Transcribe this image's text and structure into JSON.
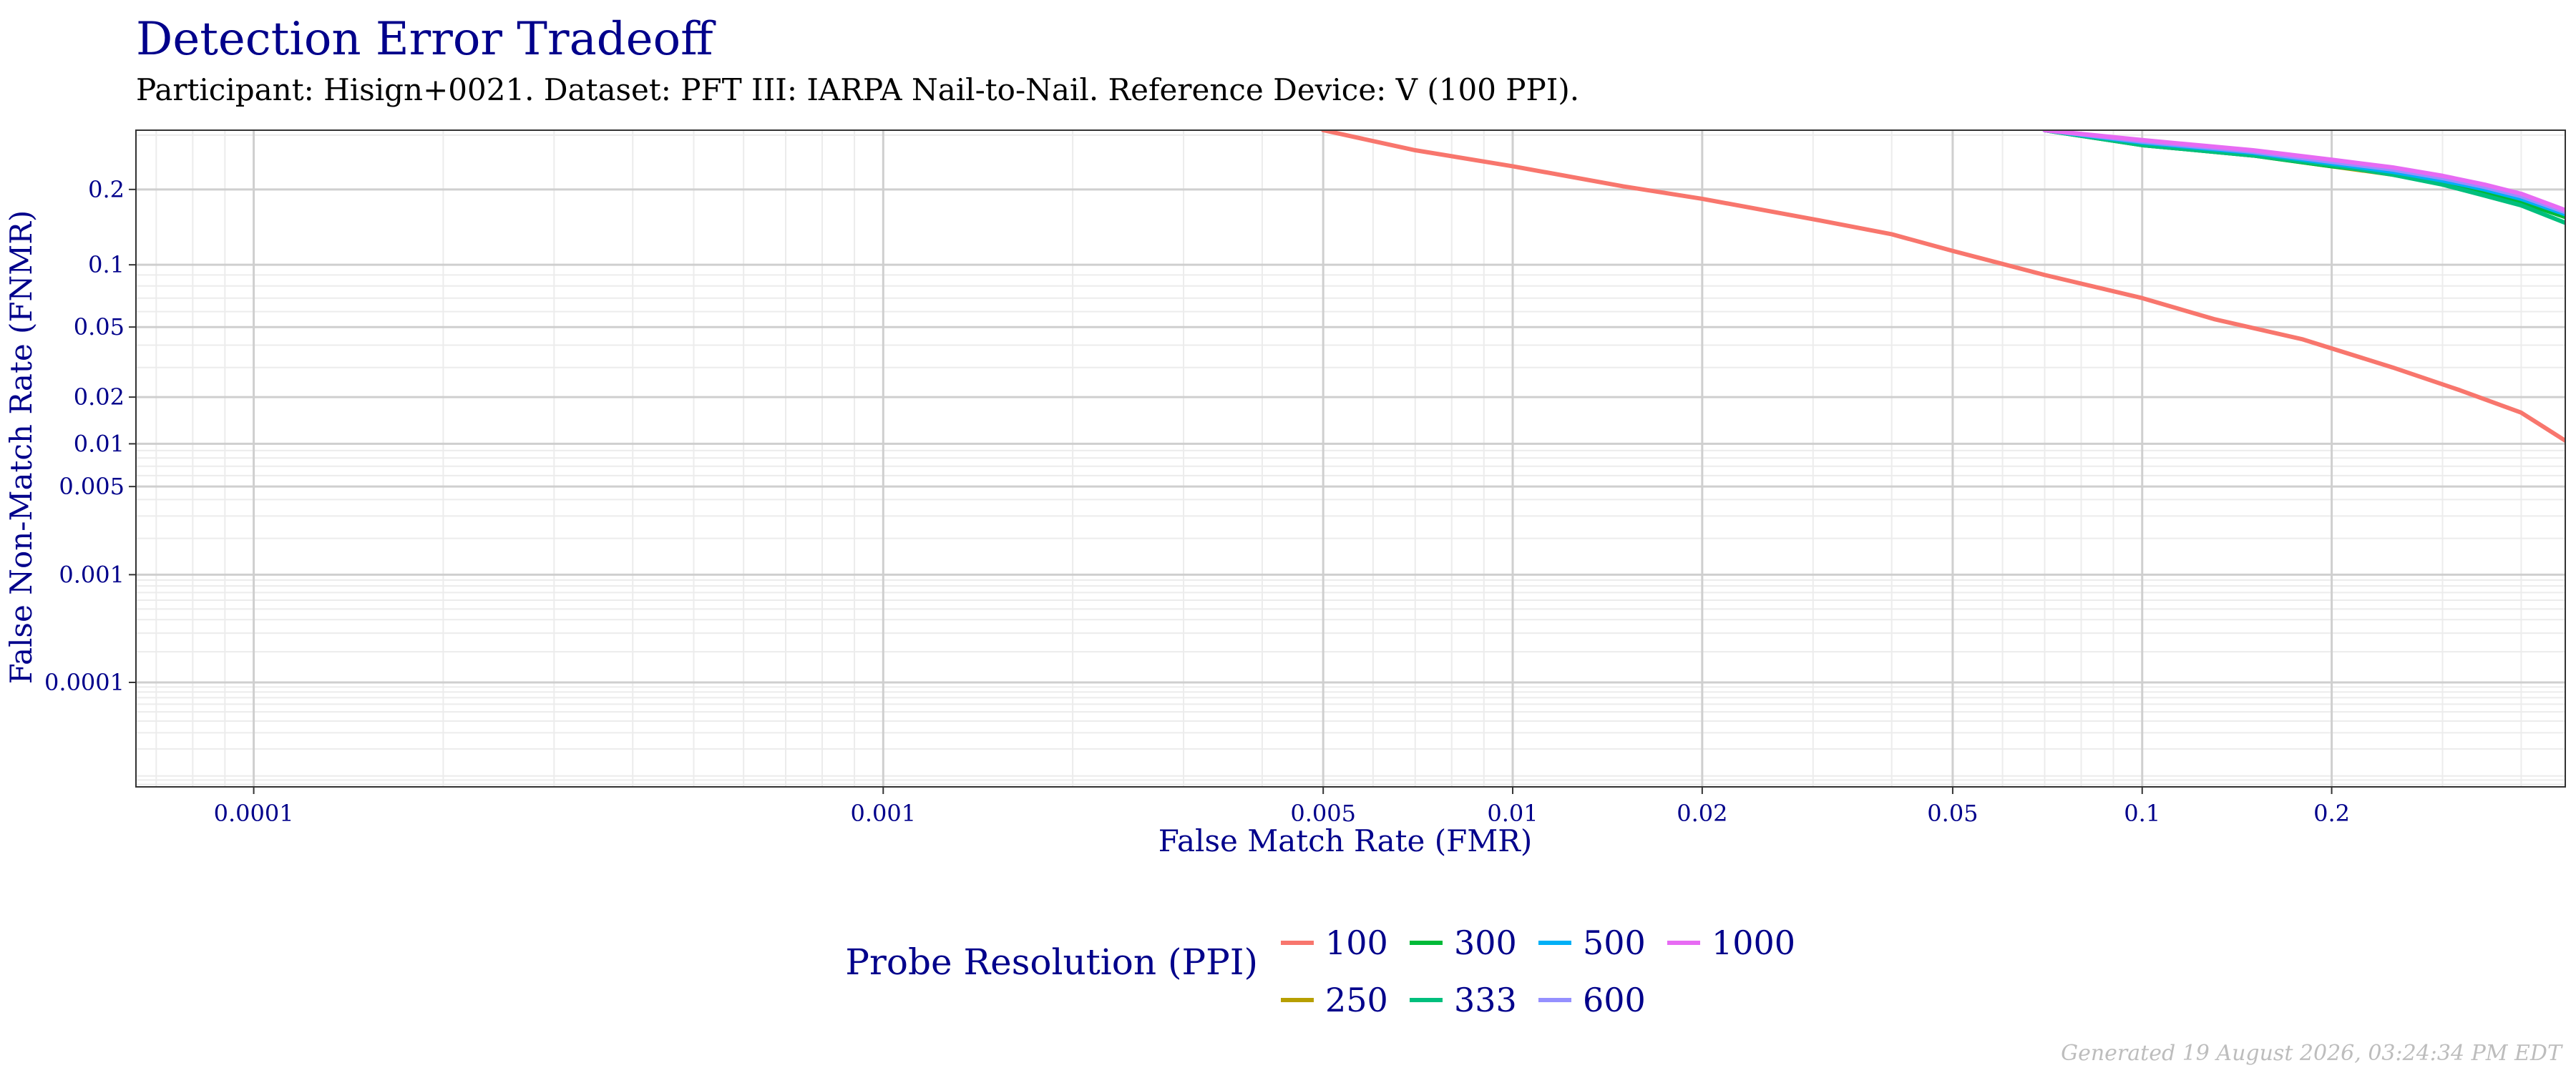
{
  "title": "Detection Error Tradeoff",
  "subtitle": "Participant: Hisign+0021. Dataset: PFT III: IARPA Nail-to-Nail. Reference Device: V (100 PPI).",
  "footer": "Generated 19 August 2026, 03:24:34 PM EDT",
  "colors": {
    "title": "#00008b",
    "axis_text": "#00008b",
    "subtitle": "#000000",
    "footer": "#bdbdbd",
    "grid_major": "#cfcfcf",
    "grid_minor": "#ececec",
    "panel_border": "#333333"
  },
  "chart_data": {
    "type": "line",
    "title": "Detection Error Tradeoff",
    "subtitle": "Participant: Hisign+0021. Dataset: PFT III: IARPA Nail-to-Nail. Reference Device: V (100 PPI).",
    "xlabel": "False Match Rate (FMR)",
    "ylabel": "False Non-Match Rate (FNMR)",
    "x_scale": "log",
    "y_scale": "probit",
    "xlim": [
      6.5e-05,
      0.47
    ],
    "ylim": [
      7.5e-06,
      0.31
    ],
    "x_ticks": [
      {
        "value": 0.0001,
        "label": "0.0001"
      },
      {
        "value": 0.001,
        "label": "0.001"
      },
      {
        "value": 0.005,
        "label": "0.005"
      },
      {
        "value": 0.01,
        "label": "0.01"
      },
      {
        "value": 0.02,
        "label": "0.02"
      },
      {
        "value": 0.05,
        "label": "0.05"
      },
      {
        "value": 0.1,
        "label": "0.1"
      },
      {
        "value": 0.2,
        "label": "0.2"
      }
    ],
    "y_ticks": [
      {
        "value": 0.2,
        "label": "0.2"
      },
      {
        "value": 0.1,
        "label": "0.1"
      },
      {
        "value": 0.05,
        "label": "0.05"
      },
      {
        "value": 0.02,
        "label": "0.02"
      },
      {
        "value": 0.01,
        "label": "0.01"
      },
      {
        "value": 0.005,
        "label": "0.005"
      },
      {
        "value": 0.001,
        "label": "0.001"
      },
      {
        "value": 0.0001,
        "label": "0.0001"
      }
    ],
    "grid": true,
    "legend": {
      "title": "Probe Resolution (PPI)",
      "position": "bottom"
    },
    "series": [
      {
        "name": "100",
        "color": "#f8766d",
        "x": [
          0.005,
          0.007,
          0.01,
          0.015,
          0.02,
          0.03,
          0.04,
          0.05,
          0.07,
          0.1,
          0.13,
          0.18,
          0.25,
          0.32,
          0.4,
          0.47
        ],
        "y": [
          0.31,
          0.27,
          0.24,
          0.205,
          0.185,
          0.155,
          0.135,
          0.115,
          0.09,
          0.07,
          0.055,
          0.043,
          0.03,
          0.022,
          0.016,
          0.0105
        ]
      },
      {
        "name": "250",
        "color": "#b79f00",
        "x": [
          0.07,
          0.1,
          0.15,
          0.2,
          0.25,
          0.3,
          0.35,
          0.4,
          0.47
        ],
        "y": [
          0.31,
          0.28,
          0.26,
          0.24,
          0.225,
          0.21,
          0.195,
          0.18,
          0.16
        ]
      },
      {
        "name": "300",
        "color": "#00ba38",
        "x": [
          0.07,
          0.1,
          0.15,
          0.2,
          0.25,
          0.3,
          0.35,
          0.4,
          0.47
        ],
        "y": [
          0.31,
          0.28,
          0.26,
          0.24,
          0.228,
          0.21,
          0.195,
          0.18,
          0.158
        ]
      },
      {
        "name": "333",
        "color": "#00bf7d",
        "x": [
          0.07,
          0.1,
          0.15,
          0.2,
          0.25,
          0.3,
          0.35,
          0.4,
          0.47
        ],
        "y": [
          0.31,
          0.28,
          0.26,
          0.242,
          0.225,
          0.208,
          0.19,
          0.175,
          0.15
        ]
      },
      {
        "name": "500",
        "color": "#00b0f6",
        "x": [
          0.07,
          0.1,
          0.15,
          0.2,
          0.25,
          0.3,
          0.35,
          0.4,
          0.47
        ],
        "y": [
          0.31,
          0.285,
          0.265,
          0.245,
          0.23,
          0.215,
          0.2,
          0.185,
          0.162
        ]
      },
      {
        "name": "600",
        "color": "#9590ff",
        "x": [
          0.07,
          0.1,
          0.15,
          0.2,
          0.25,
          0.3,
          0.35,
          0.4,
          0.47
        ],
        "y": [
          0.31,
          0.287,
          0.267,
          0.248,
          0.234,
          0.219,
          0.204,
          0.189,
          0.165
        ]
      },
      {
        "name": "1000",
        "color": "#e76bf3",
        "x": [
          0.07,
          0.1,
          0.15,
          0.2,
          0.25,
          0.3,
          0.35,
          0.4,
          0.47
        ],
        "y": [
          0.31,
          0.29,
          0.27,
          0.252,
          0.238,
          0.223,
          0.208,
          0.193,
          0.168
        ]
      }
    ]
  }
}
